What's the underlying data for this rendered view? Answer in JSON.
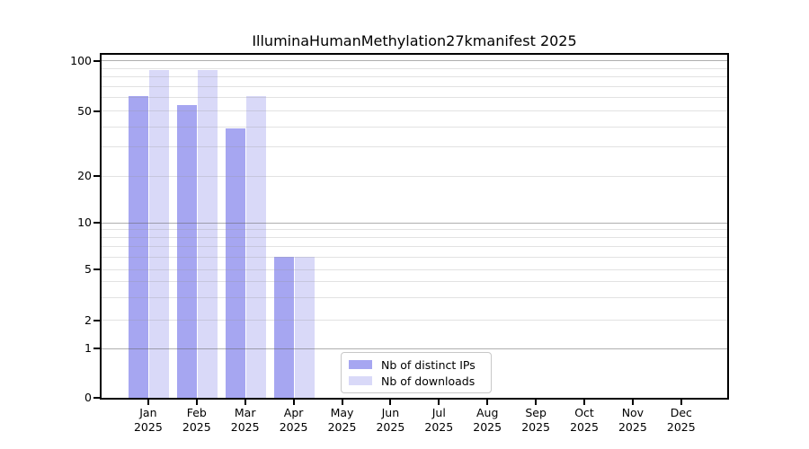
{
  "chart_data": {
    "type": "bar",
    "title": "IlluminaHumanMethylation27kmanifest 2025",
    "categories": [
      "Jan 2025",
      "Feb 2025",
      "Mar 2025",
      "Apr 2025",
      "May 2025",
      "Jun 2025",
      "Jul 2025",
      "Aug 2025",
      "Sep 2025",
      "Oct 2025",
      "Nov 2025",
      "Dec 2025"
    ],
    "series": [
      {
        "name": "Nb of distinct IPs",
        "color": "#a6a6f1",
        "values": [
          61,
          54,
          39,
          6,
          0,
          0,
          0,
          0,
          0,
          0,
          0,
          0
        ]
      },
      {
        "name": "Nb of downloads",
        "color": "#d9d9f8",
        "values": [
          88,
          88,
          61,
          6,
          0,
          0,
          0,
          0,
          0,
          0,
          0,
          0
        ]
      }
    ],
    "yticks": [
      0,
      1,
      2,
      5,
      10,
      20,
      50,
      100
    ],
    "ylim": [
      0,
      100
    ],
    "yscale": "symlog",
    "xlabel": "",
    "ylabel": "",
    "grid": true,
    "legend_position": "lower center",
    "axis_colors": {
      "spine": "#000000",
      "grid_major": "#b0b0b0",
      "grid_minor": "#e6e6e6"
    }
  }
}
